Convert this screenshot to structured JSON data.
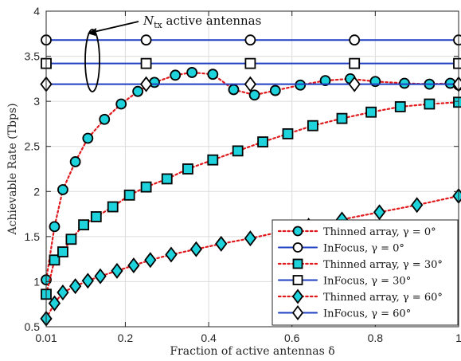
{
  "chart_data": {
    "type": "line",
    "xlabel": "Fraction of active antennas δ",
    "ylabel": "Achievable Rate (Tbps)",
    "xlim": [
      0.01,
      1.0
    ],
    "ylim": [
      0.5,
      4.0
    ],
    "xticks": [
      0.01,
      0.2,
      0.4,
      0.6,
      0.8,
      1.0
    ],
    "xtick_labels": [
      "0.01",
      "0.2",
      "0.4",
      "0.6",
      "0.8",
      "1"
    ],
    "yticks": [
      0.5,
      1.0,
      1.5,
      2.0,
      2.5,
      3.0,
      3.5,
      4.0
    ],
    "ytick_labels": [
      "0.5",
      "1",
      "1.5",
      "2",
      "2.5",
      "3",
      "3.5",
      "4"
    ],
    "grid": true,
    "legend_position": "bottom-right",
    "annotation": {
      "text": "N_tx active antennas",
      "main": "N",
      "sub": "tx",
      "rest": " active antennas"
    },
    "series": [
      {
        "name": "Thinned array, γ = 0°",
        "line_style": "dotted",
        "color": "#e0191c",
        "marker": "circle",
        "marker_fill": "#1fd3dd",
        "x": [
          0.01,
          0.03,
          0.05,
          0.08,
          0.11,
          0.15,
          0.19,
          0.23,
          0.27,
          0.32,
          0.36,
          0.41,
          0.46,
          0.51,
          0.56,
          0.62,
          0.68,
          0.74,
          0.8,
          0.87,
          0.93,
          0.98,
          1.0
        ],
        "y": [
          1.02,
          1.61,
          2.02,
          2.33,
          2.59,
          2.8,
          2.97,
          3.11,
          3.21,
          3.29,
          3.32,
          3.3,
          3.13,
          3.07,
          3.12,
          3.18,
          3.23,
          3.25,
          3.22,
          3.2,
          3.19,
          3.2,
          3.18
        ]
      },
      {
        "name": "InFocus, γ = 0°",
        "line_style": "solid",
        "color": "#1f3fc2",
        "marker": "circle",
        "marker_fill": "#ffffff",
        "x": [
          0.01,
          0.25,
          0.5,
          0.75,
          1.0
        ],
        "y": [
          3.68,
          3.68,
          3.68,
          3.68,
          3.68
        ]
      },
      {
        "name": "Thinned array, γ = 30°",
        "line_style": "dotted",
        "color": "#e0191c",
        "marker": "square",
        "marker_fill": "#1fd3dd",
        "x": [
          0.01,
          0.03,
          0.05,
          0.07,
          0.1,
          0.13,
          0.17,
          0.21,
          0.25,
          0.3,
          0.35,
          0.41,
          0.47,
          0.53,
          0.59,
          0.65,
          0.72,
          0.79,
          0.86,
          0.93,
          1.0
        ],
        "y": [
          0.86,
          1.24,
          1.33,
          1.47,
          1.63,
          1.72,
          1.83,
          1.96,
          2.05,
          2.14,
          2.25,
          2.35,
          2.45,
          2.55,
          2.64,
          2.73,
          2.81,
          2.88,
          2.94,
          2.97,
          2.99
        ]
      },
      {
        "name": "InFocus, γ = 30°",
        "line_style": "solid",
        "color": "#1f3fc2",
        "marker": "square",
        "marker_fill": "#ffffff",
        "x": [
          0.01,
          0.25,
          0.5,
          0.75,
          1.0
        ],
        "y": [
          3.42,
          3.42,
          3.42,
          3.42,
          3.42
        ]
      },
      {
        "name": "Thinned array, γ = 60°",
        "line_style": "dotted",
        "color": "#e0191c",
        "marker": "diamond",
        "marker_fill": "#1fd3dd",
        "x": [
          0.01,
          0.03,
          0.05,
          0.08,
          0.11,
          0.14,
          0.18,
          0.22,
          0.26,
          0.31,
          0.37,
          0.43,
          0.5,
          0.57,
          0.64,
          0.72,
          0.81,
          0.9,
          1.0
        ],
        "y": [
          0.59,
          0.76,
          0.88,
          0.95,
          1.01,
          1.06,
          1.12,
          1.18,
          1.24,
          1.3,
          1.36,
          1.42,
          1.48,
          1.55,
          1.62,
          1.69,
          1.77,
          1.85,
          1.95
        ]
      },
      {
        "name": "InFocus, γ = 60°",
        "line_style": "solid",
        "color": "#1f3fc2",
        "marker": "diamond",
        "marker_fill": "#ffffff",
        "x": [
          0.01,
          0.25,
          0.5,
          0.75,
          1.0
        ],
        "y": [
          3.19,
          3.19,
          3.19,
          3.19,
          3.19
        ]
      }
    ]
  }
}
